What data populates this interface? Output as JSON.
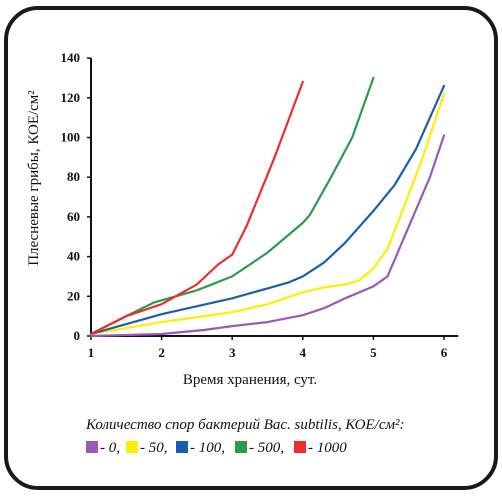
{
  "chart_data": {
    "type": "line",
    "xlabel": "Время хранения, сут.",
    "ylabel": "Плесневые грибы, КОЕ/см²",
    "xlim": [
      1,
      6.2
    ],
    "ylim": [
      0,
      140
    ],
    "xticks": [
      "1",
      "2",
      "3",
      "4",
      "5",
      "6"
    ],
    "yticks": [
      "0",
      "20",
      "40",
      "60",
      "80",
      "100",
      "120",
      "140"
    ],
    "grid": false,
    "legend_title": "Количество спор бактерий Bac. subtilis, КОЕ/см²:",
    "series": [
      {
        "name": "- 0,",
        "color": "#9b59b6",
        "points": [
          [
            1,
            0
          ],
          [
            2,
            1
          ],
          [
            2.6,
            3
          ],
          [
            3,
            5
          ],
          [
            3.5,
            7
          ],
          [
            4,
            10.5
          ],
          [
            4.3,
            14
          ],
          [
            4.6,
            19
          ],
          [
            5,
            25
          ],
          [
            5.2,
            30
          ],
          [
            5.5,
            55
          ],
          [
            5.8,
            80
          ],
          [
            6,
            101
          ]
        ]
      },
      {
        "name": "- 50,",
        "color": "#ffee00",
        "points": [
          [
            1,
            1
          ],
          [
            2,
            7
          ],
          [
            3,
            12
          ],
          [
            3.5,
            16
          ],
          [
            4,
            22
          ],
          [
            4.3,
            24.5
          ],
          [
            4.6,
            26
          ],
          [
            4.8,
            28
          ],
          [
            5,
            34
          ],
          [
            5.2,
            44
          ],
          [
            5.4,
            62
          ],
          [
            5.7,
            90
          ],
          [
            6,
            122
          ]
        ]
      },
      {
        "name": "- 100,",
        "color": "#1a5fad",
        "points": [
          [
            1,
            1
          ],
          [
            1.5,
            6
          ],
          [
            2,
            11
          ],
          [
            3,
            19
          ],
          [
            3.5,
            24
          ],
          [
            3.8,
            27
          ],
          [
            4,
            30
          ],
          [
            4.3,
            37
          ],
          [
            4.6,
            47
          ],
          [
            5,
            63
          ],
          [
            5.3,
            76
          ],
          [
            5.6,
            94
          ],
          [
            6,
            126
          ]
        ]
      },
      {
        "name": "- 500,",
        "color": "#2e9a4a",
        "points": [
          [
            1,
            1
          ],
          [
            1.5,
            10
          ],
          [
            1.9,
            17
          ],
          [
            2.5,
            23
          ],
          [
            3,
            30
          ],
          [
            3.5,
            42
          ],
          [
            4,
            57
          ],
          [
            4.1,
            61
          ],
          [
            4.4,
            80
          ],
          [
            4.7,
            100
          ],
          [
            5,
            130
          ]
        ]
      },
      {
        "name": "- 1000",
        "color": "#ef2d2d",
        "points": [
          [
            1,
            1
          ],
          [
            1.5,
            10
          ],
          [
            2,
            16
          ],
          [
            2.5,
            26
          ],
          [
            2.8,
            36
          ],
          [
            3,
            41
          ],
          [
            3.2,
            55
          ],
          [
            3.6,
            90
          ],
          [
            4,
            128
          ]
        ]
      }
    ]
  }
}
